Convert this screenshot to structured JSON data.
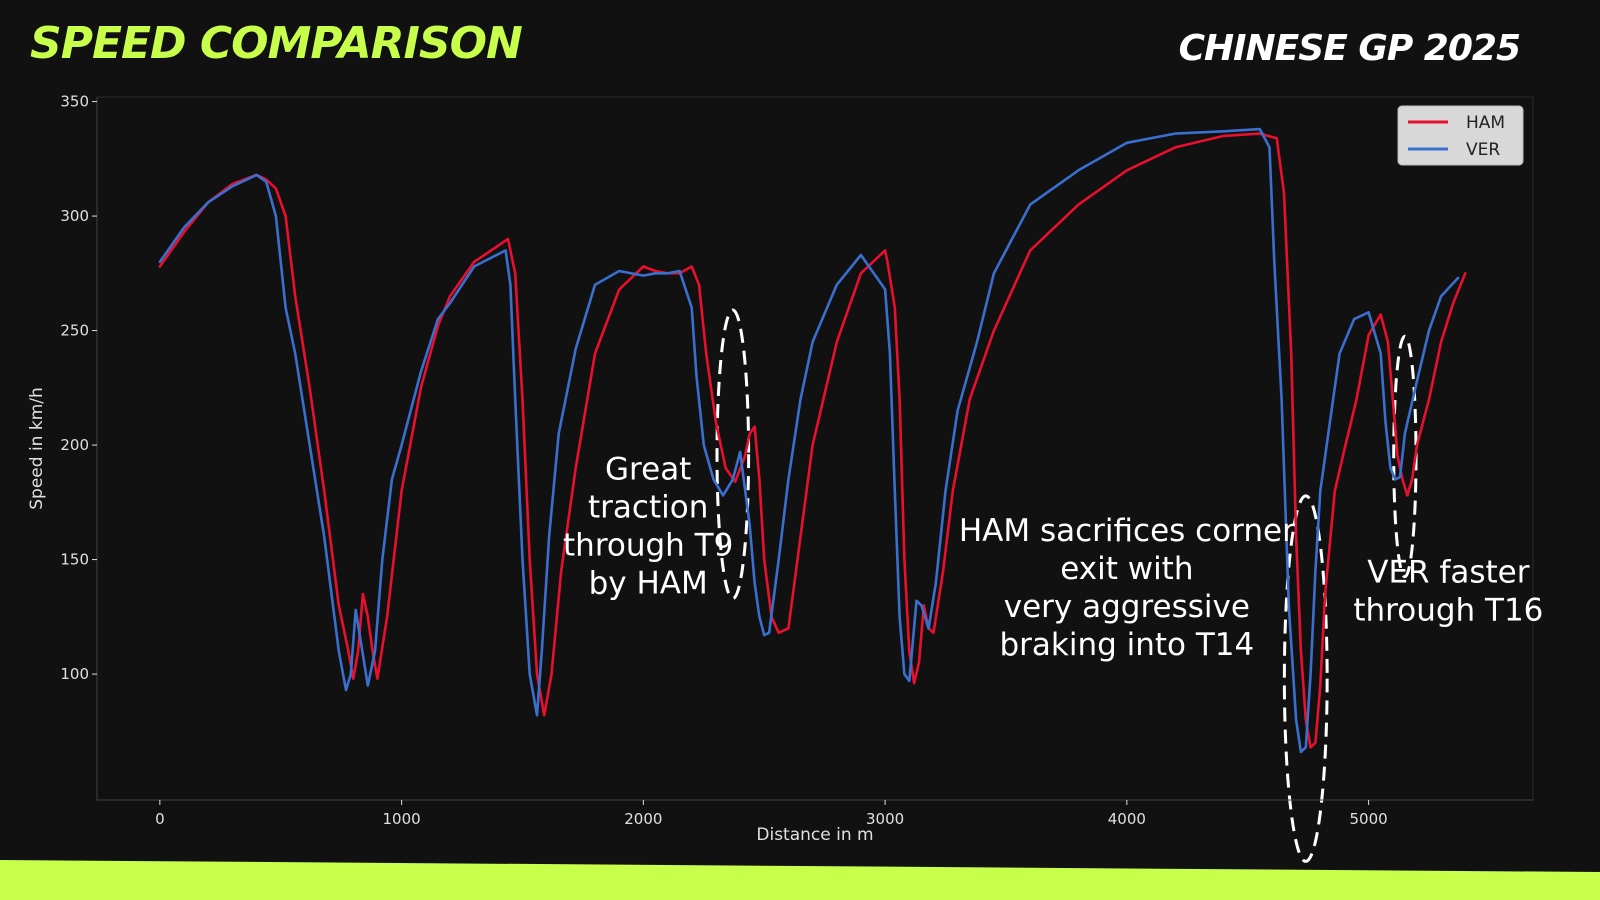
{
  "colors": {
    "background": "#111111",
    "plot_bg": "#111111",
    "accent": "#c8ff4a",
    "text": "#ffffff",
    "ham": "#e8102e",
    "ver": "#3a6fd0",
    "axis": "#e0e0e0",
    "legend_bg": "#d8d8d8",
    "legend_text": "#222222"
  },
  "header": {
    "title": "SPEED COMPARISON",
    "race": "CHINESE GP 2025"
  },
  "chart_data": {
    "type": "line",
    "title": "",
    "xlabel": "Distance in m",
    "ylabel": "Speed in km/h",
    "xlim": [
      -260,
      5680
    ],
    "ylim": [
      45,
      352
    ],
    "xticks": [
      0,
      1000,
      2000,
      3000,
      4000,
      5000
    ],
    "yticks": [
      100,
      150,
      200,
      250,
      300,
      350
    ],
    "grid": false,
    "legend": "top-right",
    "series": [
      {
        "name": "HAM",
        "color": "#e8102e",
        "x": [
          0,
          100,
          200,
          300,
          400,
          440,
          480,
          520,
          560,
          620,
          680,
          740,
          780,
          800,
          820,
          840,
          860,
          880,
          900,
          940,
          1000,
          1080,
          1150,
          1200,
          1300,
          1440,
          1470,
          1500,
          1530,
          1560,
          1590,
          1620,
          1660,
          1720,
          1800,
          1900,
          2000,
          2050,
          2100,
          2150,
          2200,
          2230,
          2260,
          2300,
          2340,
          2380,
          2420,
          2440,
          2460,
          2480,
          2500,
          2530,
          2560,
          2600,
          2650,
          2700,
          2800,
          2900,
          3000,
          3010,
          3040,
          3060,
          3080,
          3100,
          3120,
          3140,
          3160,
          3180,
          3200,
          3240,
          3280,
          3350,
          3450,
          3600,
          3800,
          4000,
          4200,
          4400,
          4550,
          4620,
          4650,
          4680,
          4700,
          4720,
          4740,
          4760,
          4780,
          4800,
          4820,
          4860,
          4900,
          4950,
          5000,
          5050,
          5080,
          5100,
          5120,
          5140,
          5160,
          5180,
          5200,
          5250,
          5300,
          5350,
          5400
        ],
        "values": [
          278,
          293,
          306,
          314,
          318,
          316,
          312,
          300,
          265,
          225,
          180,
          130,
          110,
          98,
          110,
          135,
          125,
          110,
          98,
          125,
          180,
          225,
          252,
          265,
          280,
          290,
          275,
          220,
          150,
          100,
          82,
          100,
          145,
          190,
          240,
          268,
          278,
          276,
          275,
          275,
          278,
          270,
          240,
          210,
          190,
          184,
          195,
          205,
          208,
          185,
          150,
          125,
          118,
          120,
          160,
          200,
          245,
          275,
          285,
          280,
          260,
          220,
          150,
          110,
          96,
          105,
          130,
          120,
          118,
          145,
          180,
          220,
          250,
          285,
          305,
          320,
          330,
          335,
          336,
          334,
          310,
          240,
          160,
          110,
          80,
          68,
          70,
          95,
          135,
          180,
          198,
          220,
          248,
          257,
          245,
          220,
          195,
          185,
          178,
          185,
          200,
          220,
          245,
          262,
          275
        ]
      },
      {
        "name": "VER",
        "color": "#3a6fd0",
        "x": [
          0,
          100,
          200,
          300,
          400,
          440,
          480,
          520,
          560,
          620,
          680,
          740,
          770,
          790,
          810,
          830,
          860,
          890,
          920,
          960,
          1000,
          1080,
          1150,
          1200,
          1300,
          1430,
          1450,
          1470,
          1500,
          1530,
          1560,
          1580,
          1610,
          1650,
          1720,
          1800,
          1900,
          2000,
          2050,
          2100,
          2150,
          2200,
          2220,
          2250,
          2290,
          2330,
          2370,
          2400,
          2440,
          2460,
          2480,
          2500,
          2520,
          2560,
          2600,
          2650,
          2700,
          2800,
          2900,
          3000,
          3020,
          3040,
          3060,
          3080,
          3100,
          3130,
          3150,
          3180,
          3210,
          3250,
          3300,
          3380,
          3450,
          3600,
          3800,
          4000,
          4200,
          4400,
          4550,
          4590,
          4610,
          4640,
          4670,
          4700,
          4720,
          4740,
          4760,
          4780,
          4800,
          4840,
          4880,
          4940,
          5000,
          5050,
          5070,
          5090,
          5110,
          5130,
          5150,
          5200,
          5250,
          5300,
          5370
        ],
        "values": [
          280,
          295,
          306,
          313,
          318,
          315,
          300,
          260,
          240,
          200,
          160,
          110,
          93,
          100,
          128,
          115,
          95,
          110,
          150,
          185,
          200,
          232,
          255,
          262,
          278,
          285,
          270,
          220,
          150,
          100,
          82,
          110,
          160,
          205,
          242,
          270,
          276,
          274,
          275,
          275,
          276,
          260,
          230,
          200,
          185,
          178,
          185,
          197,
          165,
          140,
          125,
          117,
          118,
          150,
          185,
          220,
          245,
          270,
          283,
          268,
          240,
          180,
          125,
          100,
          97,
          132,
          130,
          120,
          140,
          180,
          215,
          245,
          275,
          305,
          320,
          332,
          336,
          337,
          338,
          330,
          280,
          220,
          130,
          80,
          66,
          68,
          100,
          145,
          180,
          210,
          240,
          255,
          258,
          240,
          210,
          190,
          185,
          186,
          205,
          228,
          250,
          265,
          273
        ]
      }
    ],
    "annotations": [
      {
        "text": [
          "Great",
          "traction",
          "through T9",
          "by HAM"
        ],
        "x": 2020,
        "y": 185
      },
      {
        "text": [
          "HAM sacrifices corner",
          "exit with",
          "very aggressive",
          "braking into T14"
        ],
        "x": 4000,
        "y": 158
      },
      {
        "text": [
          "VER faster",
          "through T16"
        ],
        "x": 5330,
        "y": 140
      }
    ],
    "highlights": [
      {
        "cx": 2370,
        "cy": 196,
        "rx": 170,
        "ry": 30
      },
      {
        "cx": 4740,
        "cy": 98,
        "rx": 230,
        "ry": 38
      },
      {
        "cx": 5150,
        "cy": 195,
        "rx": 120,
        "ry": 25
      }
    ]
  }
}
